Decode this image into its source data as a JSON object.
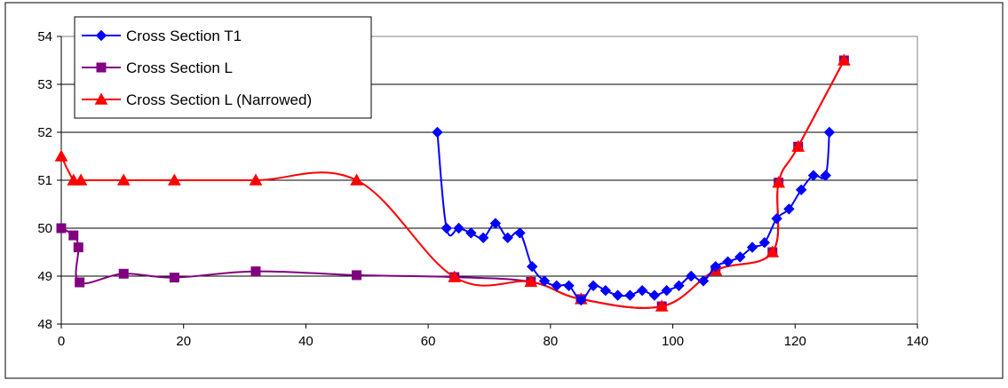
{
  "chart_data": {
    "type": "line",
    "title": "",
    "xlabel": "",
    "ylabel": "",
    "xlim": [
      0,
      140
    ],
    "ylim": [
      48,
      54
    ],
    "x_ticks": [
      0,
      20,
      40,
      60,
      80,
      100,
      120,
      140
    ],
    "y_ticks": [
      48,
      49,
      50,
      51,
      52,
      53,
      54
    ],
    "grid": "horizontal",
    "legend_position": "top-left",
    "series": [
      {
        "name": "Cross Section T1",
        "color": "#0000FF",
        "marker": "diamond",
        "x": [
          61.5,
          63,
          65,
          67,
          69,
          71,
          73,
          75,
          77,
          79,
          81,
          83,
          85,
          87,
          89,
          91,
          93,
          95,
          97,
          99,
          101,
          103,
          105,
          107,
          109,
          111,
          113,
          115,
          117,
          119,
          121,
          123,
          125,
          125.6
        ],
        "y": [
          52.0,
          50.0,
          50.0,
          49.9,
          49.8,
          50.1,
          49.8,
          49.9,
          49.2,
          48.9,
          48.8,
          48.8,
          48.5,
          48.8,
          48.7,
          48.6,
          48.6,
          48.7,
          48.6,
          48.7,
          48.8,
          49.0,
          48.9,
          49.2,
          49.3,
          49.4,
          49.6,
          49.7,
          50.2,
          50.4,
          50.8,
          51.1,
          51.1,
          52.0
        ]
      },
      {
        "name": "Cross Section L",
        "color": "#800080",
        "marker": "square",
        "x": [
          0,
          2,
          2.8,
          3,
          10.2,
          18.5,
          31.8,
          48.3,
          64.3,
          76.8,
          85,
          98.2,
          107,
          116.3,
          117.3,
          120.5,
          128
        ],
        "y": [
          50.0,
          49.85,
          49.6,
          48.87,
          49.05,
          48.97,
          49.1,
          49.02,
          48.98,
          48.88,
          48.52,
          48.37,
          49.12,
          49.5,
          50.95,
          51.7,
          53.5
        ]
      },
      {
        "name": "Cross Section L (Narrowed)",
        "color": "#FF0000",
        "marker": "triangle",
        "x": [
          0,
          2,
          3.2,
          10.2,
          18.5,
          31.8,
          48.3,
          64.3,
          76.8,
          85,
          98.2,
          107,
          116.3,
          117.3,
          120.5,
          128
        ],
        "y": [
          51.5,
          51.0,
          51.0,
          51.0,
          51.0,
          51.0,
          51.0,
          48.98,
          48.88,
          48.52,
          48.37,
          49.12,
          49.5,
          50.95,
          51.7,
          53.5
        ]
      }
    ]
  }
}
